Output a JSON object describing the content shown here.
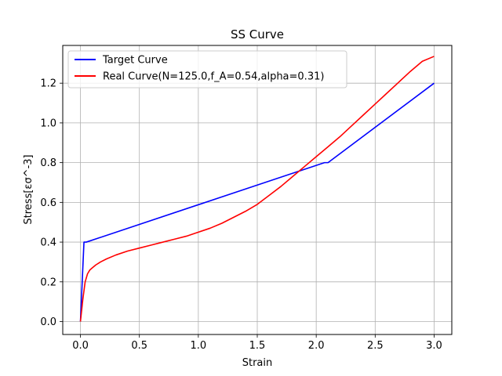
{
  "chart_data": {
    "type": "line",
    "title": "SS Curve",
    "xlabel": "Strain",
    "ylabel": "Stress[εσ^-3]",
    "xlim": [
      -0.15,
      3.15
    ],
    "ylim": [
      -0.065,
      1.39
    ],
    "xticks": [
      0.0,
      0.5,
      1.0,
      1.5,
      2.0,
      2.5,
      3.0
    ],
    "yticks": [
      0.0,
      0.2,
      0.4,
      0.6,
      0.8,
      1.0,
      1.2
    ],
    "xtick_labels": [
      "0.0",
      "0.5",
      "1.0",
      "1.5",
      "2.0",
      "2.5",
      "3.0"
    ],
    "ytick_labels": [
      "0.0",
      "0.2",
      "0.4",
      "0.6",
      "0.8",
      "1.0",
      "1.2"
    ],
    "grid": true,
    "legend_position": "top-left",
    "series": [
      {
        "name": "Target Curve",
        "color": "#0000ff",
        "x": [
          0.0,
          0.03,
          0.05,
          2.07,
          2.1,
          3.0
        ],
        "y": [
          0.0,
          0.4,
          0.4,
          0.8,
          0.8,
          1.2
        ]
      },
      {
        "name": "Real Curve(N=125.0,f_A=0.54,alpha=0.31)",
        "color": "#ff0000",
        "x": [
          0.0,
          0.02,
          0.04,
          0.06,
          0.08,
          0.1,
          0.13,
          0.17,
          0.22,
          0.3,
          0.4,
          0.5,
          0.6,
          0.7,
          0.8,
          0.9,
          1.0,
          1.1,
          1.2,
          1.3,
          1.4,
          1.5,
          1.6,
          1.7,
          1.8,
          1.9,
          2.0,
          2.1,
          2.2,
          2.3,
          2.4,
          2.5,
          2.6,
          2.7,
          2.8,
          2.9,
          3.0
        ],
        "y": [
          0.0,
          0.11,
          0.2,
          0.24,
          0.26,
          0.27,
          0.285,
          0.3,
          0.315,
          0.335,
          0.355,
          0.37,
          0.385,
          0.4,
          0.415,
          0.43,
          0.45,
          0.47,
          0.495,
          0.525,
          0.555,
          0.59,
          0.635,
          0.68,
          0.73,
          0.78,
          0.83,
          0.88,
          0.93,
          0.985,
          1.04,
          1.095,
          1.15,
          1.205,
          1.26,
          1.31,
          1.335
        ]
      }
    ]
  }
}
